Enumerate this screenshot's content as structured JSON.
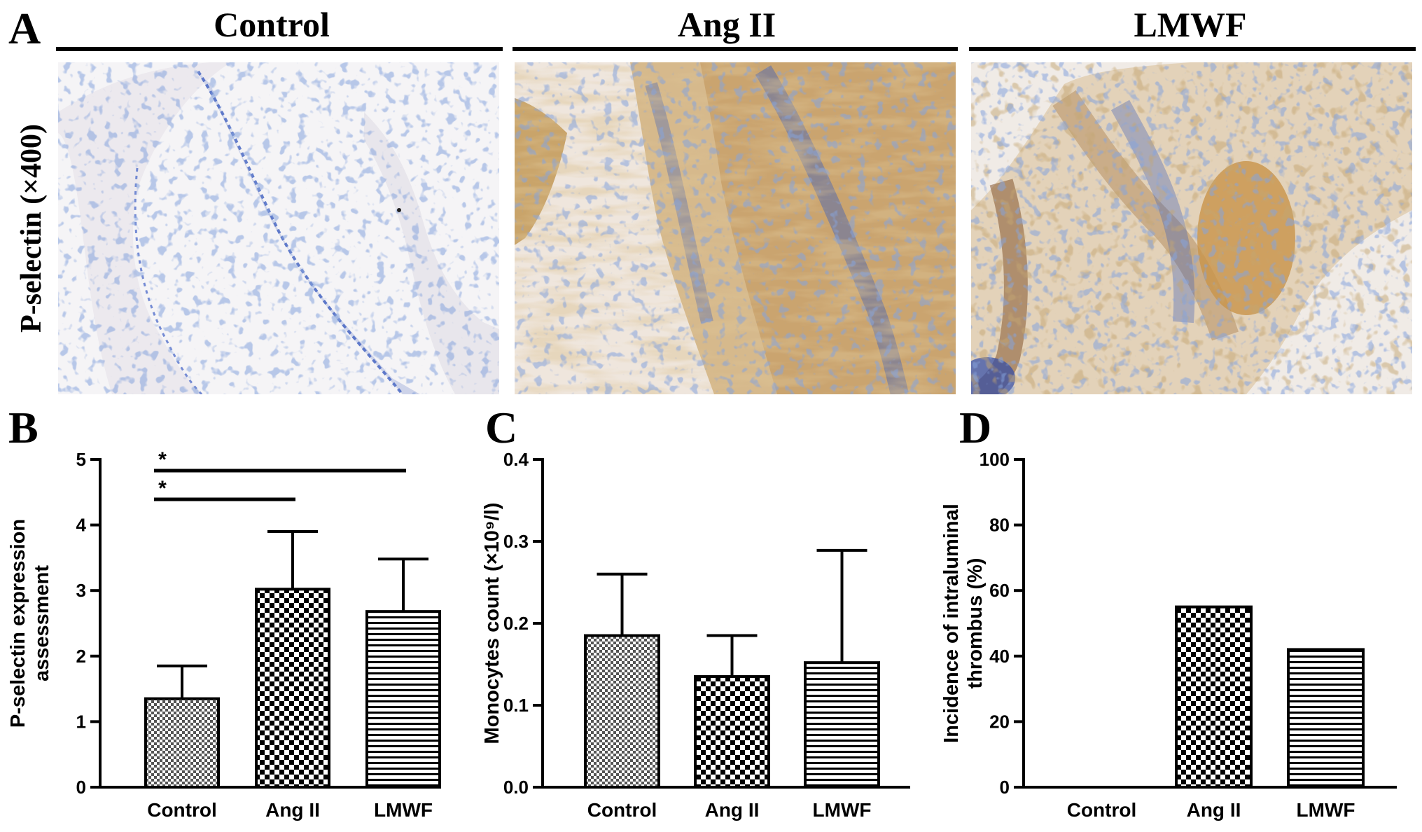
{
  "panels": {
    "a": {
      "letter": "A",
      "row_label": "P-selectin (×400)",
      "groups": [
        "Control",
        "Ang II",
        "LMWF"
      ]
    },
    "b": {
      "letter": "B"
    },
    "c": {
      "letter": "C"
    },
    "d": {
      "letter": "D"
    }
  },
  "colors": {
    "axis": "#000000",
    "stain_brown": "#b98a45",
    "nuclei_blue": "#3d5fb8",
    "tissue_background": "#f3ede4"
  },
  "chart_data": [
    {
      "id": "b",
      "type": "bar",
      "categories": [
        "Control",
        "Ang II",
        "LMWF"
      ],
      "values": [
        1.35,
        3.02,
        2.68
      ],
      "errors": [
        0.5,
        0.88,
        0.8
      ],
      "ylabel_lines": [
        "P-selectin expression",
        "assessment"
      ],
      "ylim": [
        0,
        5
      ],
      "yticks": [
        0,
        1,
        2,
        3,
        4,
        5
      ],
      "ytick_labels": [
        "0",
        "1",
        "2",
        "3",
        "4",
        "5"
      ],
      "patterns": [
        "dense-check",
        "check",
        "hlines"
      ],
      "significance": [
        {
          "from": 0,
          "to": 1,
          "label": "*"
        },
        {
          "from": 0,
          "to": 2,
          "label": "*"
        }
      ]
    },
    {
      "id": "c",
      "type": "bar",
      "categories": [
        "Control",
        "Ang II",
        "LMWF"
      ],
      "values": [
        0.185,
        0.135,
        0.152
      ],
      "errors": [
        0.075,
        0.05,
        0.137
      ],
      "ylabel_lines": [
        "Monocytes count (×10⁹/l)"
      ],
      "ylim": [
        0,
        0.4
      ],
      "yticks": [
        0,
        0.1,
        0.2,
        0.3,
        0.4
      ],
      "ytick_labels": [
        "0.0",
        "0.1",
        "0.2",
        "0.3",
        "0.4"
      ],
      "patterns": [
        "dense-check",
        "check",
        "hlines"
      ],
      "significance": []
    },
    {
      "id": "d",
      "type": "bar",
      "categories": [
        "Control",
        "Ang II",
        "LMWF"
      ],
      "values": [
        0,
        55,
        42
      ],
      "errors": [
        0,
        0,
        0
      ],
      "ylabel_lines": [
        "Incidence of intraluminal",
        "thrombus (%)"
      ],
      "ylim": [
        0,
        100
      ],
      "yticks": [
        0,
        20,
        40,
        60,
        80,
        100
      ],
      "ytick_labels": [
        "0",
        "20",
        "40",
        "60",
        "80",
        "100"
      ],
      "patterns": [
        "dense-check",
        "check",
        "hlines"
      ],
      "significance": []
    }
  ]
}
